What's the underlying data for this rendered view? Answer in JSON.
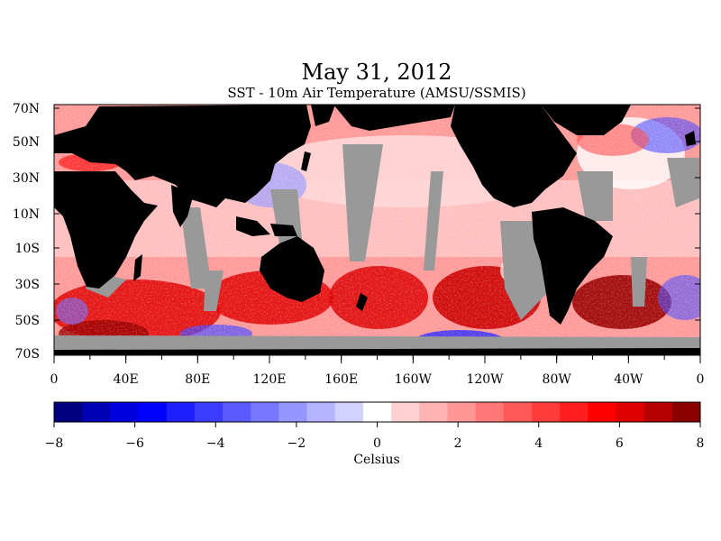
{
  "title": "May 31, 2012",
  "subtitle": "SST - 10m Air Temperature (AMSU/SSMIS)",
  "map": {
    "lat_labels": [
      "70N",
      "50N",
      "30N",
      "10N",
      "10S",
      "30S",
      "50S",
      "70S"
    ],
    "lon_labels": [
      "0",
      "40E",
      "80E",
      "120E",
      "160E",
      "160W",
      "120W",
      "80W",
      "40W",
      "0"
    ],
    "land_color": "#000000",
    "missing_color": "#999999"
  },
  "colorbar": {
    "tick_labels": [
      "-8",
      "-6",
      "-4",
      "-2",
      "0",
      "2",
      "4",
      "6",
      "8"
    ],
    "unit_label": "Celsius",
    "min": -8,
    "max": 8,
    "colors": [
      "#000080",
      "#0000b4",
      "#0000dc",
      "#0000ff",
      "#1e1eff",
      "#3c3cff",
      "#5a5aff",
      "#7878ff",
      "#9696ff",
      "#b4b4ff",
      "#d2d2ff",
      "#ffffff",
      "#ffd2d2",
      "#ffb4b4",
      "#ff9696",
      "#ff7878",
      "#ff5a5a",
      "#ff3c3c",
      "#ff1e1e",
      "#ff0000",
      "#dc0000",
      "#b40000",
      "#8c0000"
    ]
  }
}
